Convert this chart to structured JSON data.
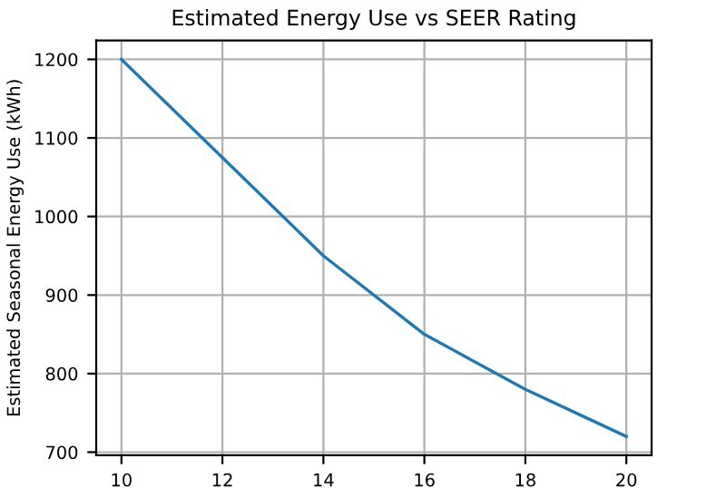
{
  "chart_data": {
    "type": "line",
    "title": "Estimated Energy Use vs SEER Rating",
    "ylabel": "Estimated Seasonal Energy Use (kWh)",
    "x": [
      10,
      12,
      14,
      16,
      18,
      20
    ],
    "series": [
      {
        "color": "#1f77b4",
        "values": [
          1200,
          1075,
          950,
          850,
          780,
          720
        ]
      }
    ],
    "xlim": [
      9.5,
      20.5
    ],
    "ylim": [
      696,
      1224
    ],
    "xticks": [
      10,
      12,
      14,
      16,
      18,
      20
    ],
    "yticks": [
      700,
      800,
      900,
      1000,
      1100,
      1200
    ],
    "grid": true,
    "marker": "none",
    "line_style": "solid"
  }
}
